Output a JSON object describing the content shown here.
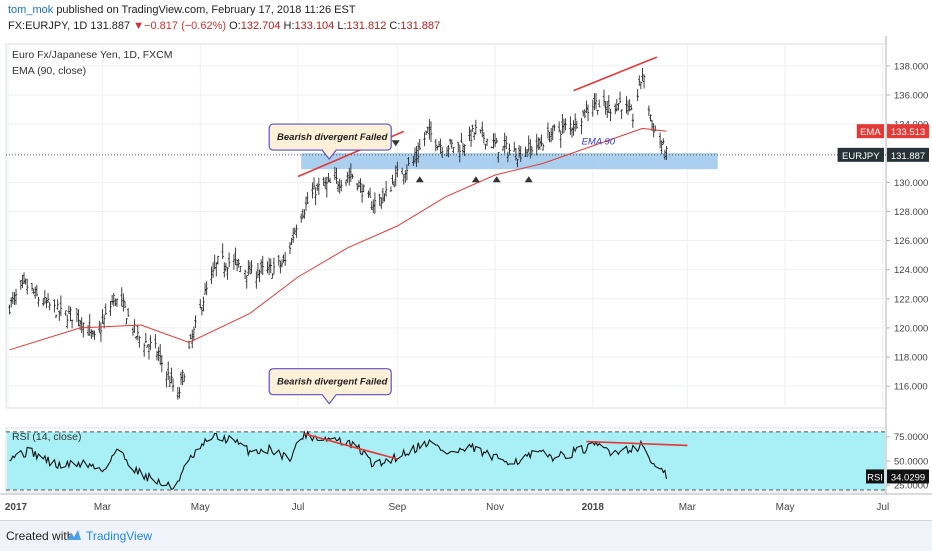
{
  "header": {
    "author": "tom_mok",
    "published": "published on TradingView.com, February 17, 2018 11:26 EST",
    "symbol": "FX:EURJPY, 1D",
    "last": "131.887",
    "change_arrow": "▼",
    "change": "−0.817 (−0.62%)",
    "o_label": "O:",
    "o": "132.704",
    "h_label": "H:",
    "h": "133.104",
    "l_label": "L:",
    "l": "131.812",
    "c_label": "C:",
    "c": "131.887"
  },
  "footer": {
    "created": "Created with",
    "brand": "TradingView"
  },
  "chart_data": {
    "type": "bar",
    "legend": [
      "Euro Fx/Japanese Yen, 1D, FXCM",
      "EMA (90, close)"
    ],
    "price_axis": {
      "ticks": [
        "138.000",
        "136.000",
        "134.000",
        "132.000",
        "130.000",
        "128.000",
        "126.000",
        "124.000",
        "122.000",
        "120.000",
        "118.000",
        "116.000"
      ],
      "ylim": [
        114.5,
        139.5
      ]
    },
    "time_axis": {
      "ticks": [
        "2017",
        "Mar",
        "May",
        "Jul",
        "Sep",
        "Nov",
        "2018",
        "Mar",
        "May",
        "Jul"
      ]
    },
    "price_anchors": [
      [
        "2017-01-02",
        121.5
      ],
      [
        "2017-01-12",
        123.0
      ],
      [
        "2017-01-20",
        122.0
      ],
      [
        "2017-02-03",
        121.0
      ],
      [
        "2017-02-14",
        120.8
      ],
      [
        "2017-02-24",
        119.2
      ],
      [
        "2017-03-02",
        120.5
      ],
      [
        "2017-03-08",
        122.0
      ],
      [
        "2017-03-14",
        121.5
      ],
      [
        "2017-03-22",
        119.5
      ],
      [
        "2017-04-03",
        118.5
      ],
      [
        "2017-04-12",
        116.5
      ],
      [
        "2017-04-17",
        115.2
      ],
      [
        "2017-04-24",
        118.5
      ],
      [
        "2017-05-03",
        122.0
      ],
      [
        "2017-05-12",
        124.5
      ],
      [
        "2017-05-22",
        124.5
      ],
      [
        "2017-06-01",
        123.8
      ],
      [
        "2017-06-14",
        124.0
      ],
      [
        "2017-06-23",
        124.5
      ],
      [
        "2017-07-01",
        127.5
      ],
      [
        "2017-07-12",
        129.5
      ],
      [
        "2017-07-24",
        130.0
      ],
      [
        "2017-08-04",
        130.5
      ],
      [
        "2017-08-16",
        128.5
      ],
      [
        "2017-08-24",
        129.0
      ],
      [
        "2017-09-01",
        130.5
      ],
      [
        "2017-09-12",
        131.5
      ],
      [
        "2017-09-20",
        133.5
      ],
      [
        "2017-09-29",
        132.5
      ],
      [
        "2017-10-10",
        132.5
      ],
      [
        "2017-10-20",
        133.5
      ],
      [
        "2017-11-01",
        132.5
      ],
      [
        "2017-11-15",
        132.0
      ],
      [
        "2017-11-27",
        132.5
      ],
      [
        "2017-12-08",
        133.5
      ],
      [
        "2017-12-20",
        134.0
      ],
      [
        "2018-01-02",
        135.5
      ],
      [
        "2018-01-10",
        135.0
      ],
      [
        "2018-01-18",
        135.5
      ],
      [
        "2018-01-26",
        134.5
      ],
      [
        "2018-02-01",
        137.5
      ],
      [
        "2018-02-07",
        134.0
      ],
      [
        "2018-02-16",
        131.9
      ]
    ],
    "ema_anchors": [
      [
        "2017-01-02",
        118.5
      ],
      [
        "2017-02-15",
        120.0
      ],
      [
        "2017-03-25",
        120.2
      ],
      [
        "2017-04-24",
        119.0
      ],
      [
        "2017-06-01",
        121.0
      ],
      [
        "2017-07-01",
        123.5
      ],
      [
        "2017-08-01",
        125.5
      ],
      [
        "2017-09-01",
        127.0
      ],
      [
        "2017-10-01",
        129.0
      ],
      [
        "2017-11-01",
        130.5
      ],
      [
        "2017-12-01",
        131.3
      ],
      [
        "2018-01-01",
        132.5
      ],
      [
        "2018-02-01",
        133.7
      ],
      [
        "2018-02-16",
        133.51
      ]
    ],
    "support_zone": {
      "from": "2017-07-03",
      "to": "2018-03-20",
      "low": 130.9,
      "high": 132.0
    },
    "support_markers": [
      "2017-09-15",
      "2017-10-20",
      "2017-11-02",
      "2017-11-22"
    ],
    "resistance_markers": [
      "2017-08-14",
      "2017-08-31"
    ],
    "trendline_price_1": [
      [
        "2017-07-01",
        130.4
      ],
      [
        "2017-09-05",
        133.5
      ]
    ],
    "trendline_price_2": [
      [
        "2017-12-20",
        136.3
      ],
      [
        "2018-02-10",
        138.6
      ]
    ],
    "ema_label": "EMA 90",
    "ema_label_at": [
      "2017-12-25",
      132.6
    ],
    "last_price_line": 131.887,
    "price_badges": [
      {
        "label": "EMA",
        "value": "133.513",
        "y": 133.513,
        "color": "#e53935"
      },
      {
        "label": "EURJPY",
        "value": "131.887",
        "y": 131.887,
        "color": "#263238"
      }
    ],
    "callouts": [
      {
        "text": "Bearish divergent Failed",
        "at": [
          "2017-07-03",
          134.0
        ],
        "pointer": "down"
      },
      {
        "text": "Bearish divergent Failed",
        "at": [
          "2017-07-03",
          117.2
        ],
        "pointer": "down"
      }
    ],
    "rsi": {
      "label": "RSI (14, close)",
      "ticks": [
        "75.0000",
        "50.0000",
        "25.0000"
      ],
      "ylim": [
        18,
        84
      ],
      "upper": 80,
      "lower": 20,
      "anchors": [
        [
          "2017-01-02",
          55
        ],
        [
          "2017-01-15",
          60
        ],
        [
          "2017-02-01",
          45
        ],
        [
          "2017-02-18",
          48
        ],
        [
          "2017-03-01",
          40
        ],
        [
          "2017-03-10",
          62
        ],
        [
          "2017-03-22",
          40
        ],
        [
          "2017-04-05",
          28
        ],
        [
          "2017-04-14",
          22
        ],
        [
          "2017-04-25",
          52
        ],
        [
          "2017-05-08",
          75
        ],
        [
          "2017-05-20",
          72
        ],
        [
          "2017-06-01",
          60
        ],
        [
          "2017-06-15",
          62
        ],
        [
          "2017-06-25",
          52
        ],
        [
          "2017-07-05",
          78
        ],
        [
          "2017-07-14",
          74
        ],
        [
          "2017-07-25",
          72
        ],
        [
          "2017-08-07",
          64
        ],
        [
          "2017-08-18",
          45
        ],
        [
          "2017-08-28",
          52
        ],
        [
          "2017-09-08",
          60
        ],
        [
          "2017-09-20",
          70
        ],
        [
          "2017-10-03",
          58
        ],
        [
          "2017-10-18",
          63
        ],
        [
          "2017-11-02",
          52
        ],
        [
          "2017-11-15",
          50
        ],
        [
          "2017-11-27",
          58
        ],
        [
          "2017-12-10",
          54
        ],
        [
          "2017-12-22",
          60
        ],
        [
          "2018-01-05",
          66
        ],
        [
          "2018-01-12",
          60
        ],
        [
          "2018-01-22",
          62
        ],
        [
          "2018-02-01",
          66
        ],
        [
          "2018-02-08",
          46
        ],
        [
          "2018-02-16",
          34
        ]
      ],
      "trendline_1": [
        [
          "2017-07-05",
          78
        ],
        [
          "2017-09-01",
          52
        ]
      ],
      "trendline_2": [
        [
          "2017-12-28",
          70
        ],
        [
          "2018-03-01",
          66
        ]
      ],
      "badge": {
        "label": "RSI",
        "value": "34.0299",
        "y": 34.0299
      }
    },
    "colors": {
      "bars": "#2b2b2b",
      "ema": "#e53935",
      "trend": "#e53935",
      "zone": "#9cc7ec",
      "rsi_band": "#a8f0f5",
      "rsi_line": "#111111"
    }
  }
}
